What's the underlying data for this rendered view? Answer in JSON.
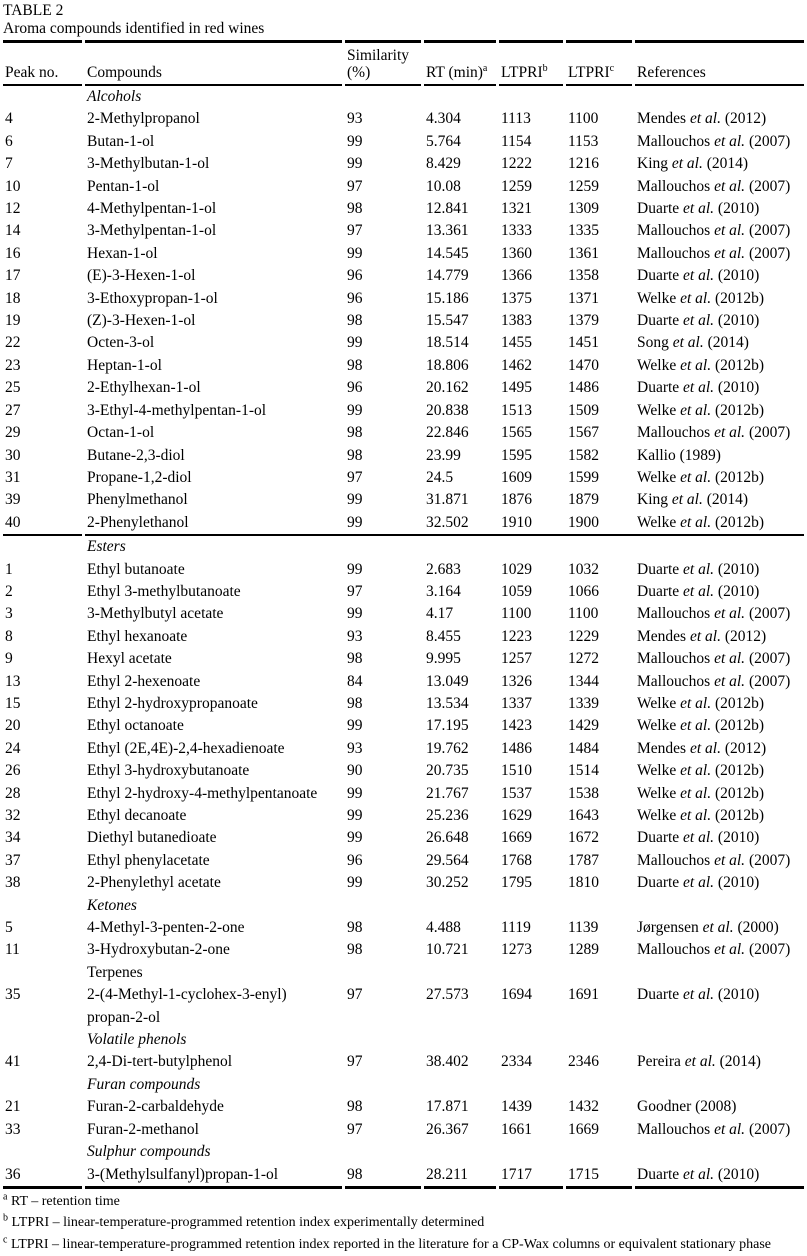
{
  "table": {
    "label": "TABLE 2",
    "caption": "Aroma compounds identified in red wines"
  },
  "columns": [
    {
      "line1": "",
      "line2": "Peak no.",
      "sup": ""
    },
    {
      "line1": "",
      "line2": "Compounds",
      "sup": ""
    },
    {
      "line1": "Similarity",
      "line2": "(%)",
      "sup": ""
    },
    {
      "line1": "",
      "line2": "RT (min)",
      "sup": "a"
    },
    {
      "line1": "",
      "line2": "LTPRI",
      "sup": "b"
    },
    {
      "line1": "",
      "line2": "LTPRI",
      "sup": "c"
    },
    {
      "line1": "",
      "line2": "References",
      "sup": ""
    }
  ],
  "sections": [
    {
      "name": "Alcohols",
      "italic": true,
      "rule_above": false,
      "rows": [
        {
          "peak": "4",
          "compound": "2-Methylpropanol",
          "similarity": "93",
          "rt": "4.304",
          "ltpri_exp": "1113",
          "ltpri_lit": "1100",
          "ref": {
            "pre": "Mendes",
            "etal": true,
            "post": "(2012)"
          }
        },
        {
          "peak": "6",
          "compound": "Butan-1-ol",
          "similarity": "99",
          "rt": "5.764",
          "ltpri_exp": "1154",
          "ltpri_lit": "1153",
          "ref": {
            "pre": "Mallouchos",
            "etal": true,
            "post": "(2007)"
          }
        },
        {
          "peak": "7",
          "compound": "3-Methylbutan-1-ol",
          "similarity": "99",
          "rt": "8.429",
          "ltpri_exp": "1222",
          "ltpri_lit": "1216",
          "ref": {
            "pre": "King",
            "etal": true,
            "post": "(2014)"
          }
        },
        {
          "peak": "10",
          "compound": "Pentan-1-ol",
          "similarity": "97",
          "rt": "10.08",
          "ltpri_exp": "1259",
          "ltpri_lit": "1259",
          "ref": {
            "pre": "Mallouchos",
            "etal": true,
            "post": "(2007)"
          }
        },
        {
          "peak": "12",
          "compound": "4-Methylpentan-1-ol",
          "similarity": "98",
          "rt": "12.841",
          "ltpri_exp": "1321",
          "ltpri_lit": "1309",
          "ref": {
            "pre": "Duarte",
            "etal": true,
            "post": "(2010)"
          }
        },
        {
          "peak": "14",
          "compound": "3-Methylpentan-1-ol",
          "similarity": "97",
          "rt": "13.361",
          "ltpri_exp": "1333",
          "ltpri_lit": "1335",
          "ref": {
            "pre": "Mallouchos",
            "etal": true,
            "post": "(2007)"
          }
        },
        {
          "peak": "16",
          "compound": "Hexan-1-ol",
          "similarity": "99",
          "rt": "14.545",
          "ltpri_exp": "1360",
          "ltpri_lit": "1361",
          "ref": {
            "pre": "Mallouchos",
            "etal": true,
            "post": "(2007)"
          }
        },
        {
          "peak": "17",
          "compound": "(E)-3-Hexen-1-ol",
          "similarity": "96",
          "rt": "14.779",
          "ltpri_exp": "1366",
          "ltpri_lit": "1358",
          "ref": {
            "pre": "Duarte",
            "etal": true,
            "post": "(2010)"
          }
        },
        {
          "peak": "18",
          "compound": "3-Ethoxypropan-1-ol",
          "similarity": "96",
          "rt": "15.186",
          "ltpri_exp": "1375",
          "ltpri_lit": "1371",
          "ref": {
            "pre": "Welke",
            "etal": true,
            "post": "(2012b)"
          }
        },
        {
          "peak": "19",
          "compound": "(Z)-3-Hexen-1-ol",
          "similarity": "98",
          "rt": "15.547",
          "ltpri_exp": "1383",
          "ltpri_lit": "1379",
          "ref": {
            "pre": "Duarte",
            "etal": true,
            "post": "(2010)"
          }
        },
        {
          "peak": "22",
          "compound": "Octen-3-ol",
          "similarity": "99",
          "rt": "18.514",
          "ltpri_exp": "1455",
          "ltpri_lit": "1451",
          "ref": {
            "pre": "Song",
            "etal": true,
            "post": "(2014)"
          }
        },
        {
          "peak": "23",
          "compound": "Heptan-1-ol",
          "similarity": "98",
          "rt": "18.806",
          "ltpri_exp": "1462",
          "ltpri_lit": "1470",
          "ref": {
            "pre": "Welke",
            "etal": true,
            "post": "(2012b)"
          }
        },
        {
          "peak": "25",
          "compound": "2-Ethylhexan-1-ol",
          "similarity": "96",
          "rt": "20.162",
          "ltpri_exp": "1495",
          "ltpri_lit": "1486",
          "ref": {
            "pre": "Duarte",
            "etal": true,
            "post": "(2010)"
          }
        },
        {
          "peak": "27",
          "compound": "3-Ethyl-4-methylpentan-1-ol",
          "similarity": "99",
          "rt": "20.838",
          "ltpri_exp": "1513",
          "ltpri_lit": "1509",
          "ref": {
            "pre": "Welke",
            "etal": true,
            "post": "(2012b)"
          }
        },
        {
          "peak": "29",
          "compound": "Octan-1-ol",
          "similarity": "98",
          "rt": "22.846",
          "ltpri_exp": "1565",
          "ltpri_lit": "1567",
          "ref": {
            "pre": "Mallouchos",
            "etal": true,
            "post": "(2007)"
          }
        },
        {
          "peak": "30",
          "compound": "Butane-2,3-diol",
          "similarity": "98",
          "rt": "23.99",
          "ltpri_exp": "1595",
          "ltpri_lit": "1582",
          "ref": {
            "pre": "Kallio",
            "etal": false,
            "post": "(1989)"
          }
        },
        {
          "peak": "31",
          "compound": "Propane-1,2-diol",
          "similarity": "97",
          "rt": "24.5",
          "ltpri_exp": "1609",
          "ltpri_lit": "1599",
          "ref": {
            "pre": "Welke",
            "etal": true,
            "post": "(2012b)"
          }
        },
        {
          "peak": "39",
          "compound": "Phenylmethanol",
          "similarity": "99",
          "rt": "31.871",
          "ltpri_exp": "1876",
          "ltpri_lit": "1879",
          "ref": {
            "pre": "King",
            "etal": true,
            "post": "(2014)"
          }
        },
        {
          "peak": "40",
          "compound": "2-Phenylethanol",
          "similarity": "99",
          "rt": "32.502",
          "ltpri_exp": "1910",
          "ltpri_lit": "1900",
          "ref": {
            "pre": "Welke",
            "etal": true,
            "post": "(2012b)"
          }
        }
      ]
    },
    {
      "name": "Esters",
      "italic": true,
      "rule_above": true,
      "rows": [
        {
          "peak": "1",
          "compound": "Ethyl butanoate",
          "similarity": "99",
          "rt": "2.683",
          "ltpri_exp": "1029",
          "ltpri_lit": "1032",
          "ref": {
            "pre": "Duarte",
            "etal": true,
            "post": "(2010)"
          }
        },
        {
          "peak": "2",
          "compound": "Ethyl 3-methylbutanoate",
          "similarity": "97",
          "rt": "3.164",
          "ltpri_exp": "1059",
          "ltpri_lit": "1066",
          "ref": {
            "pre": "Duarte",
            "etal": true,
            "post": "(2010)"
          }
        },
        {
          "peak": "3",
          "compound": "3-Methylbutyl acetate",
          "similarity": "99",
          "rt": "4.17",
          "ltpri_exp": "1100",
          "ltpri_lit": "1100",
          "ref": {
            "pre": "Mallouchos",
            "etal": true,
            "post": "(2007)"
          }
        },
        {
          "peak": "8",
          "compound": "Ethyl hexanoate",
          "similarity": "93",
          "rt": "8.455",
          "ltpri_exp": "1223",
          "ltpri_lit": "1229",
          "ref": {
            "pre": "Mendes",
            "etal": true,
            "post": "(2012)"
          }
        },
        {
          "peak": "9",
          "compound": "Hexyl acetate",
          "similarity": "98",
          "rt": "9.995",
          "ltpri_exp": "1257",
          "ltpri_lit": "1272",
          "ref": {
            "pre": "Mallouchos",
            "etal": true,
            "post": "(2007)"
          }
        },
        {
          "peak": "13",
          "compound": "Ethyl 2-hexenoate",
          "similarity": "84",
          "rt": "13.049",
          "ltpri_exp": "1326",
          "ltpri_lit": "1344",
          "ref": {
            "pre": "Mallouchos",
            "etal": true,
            "post": "(2007)"
          }
        },
        {
          "peak": "15",
          "compound": "Ethyl 2-hydroxypropanoate",
          "similarity": "98",
          "rt": "13.534",
          "ltpri_exp": "1337",
          "ltpri_lit": "1339",
          "ref": {
            "pre": "Welke",
            "etal": true,
            "post": "(2012b)"
          }
        },
        {
          "peak": "20",
          "compound": "Ethyl octanoate",
          "similarity": "99",
          "rt": "17.195",
          "ltpri_exp": "1423",
          "ltpri_lit": "1429",
          "ref": {
            "pre": "Welke",
            "etal": true,
            "post": "(2012b)"
          }
        },
        {
          "peak": "24",
          "compound": "Ethyl (2E,4E)-2,4-hexadienoate",
          "similarity": "93",
          "rt": "19.762",
          "ltpri_exp": "1486",
          "ltpri_lit": "1484",
          "ref": {
            "pre": "Mendes",
            "etal": true,
            "post": "(2012)"
          }
        },
        {
          "peak": "26",
          "compound": "Ethyl 3-hydroxybutanoate",
          "similarity": "90",
          "rt": "20.735",
          "ltpri_exp": "1510",
          "ltpri_lit": "1514",
          "ref": {
            "pre": "Welke",
            "etal": true,
            "post": "(2012b)"
          }
        },
        {
          "peak": "28",
          "compound": "Ethyl 2-hydroxy-4-methylpentanoate",
          "similarity": "99",
          "rt": "21.767",
          "ltpri_exp": "1537",
          "ltpri_lit": "1538",
          "ref": {
            "pre": "Welke",
            "etal": true,
            "post": "(2012b)"
          }
        },
        {
          "peak": "32",
          "compound": "Ethyl decanoate",
          "similarity": "99",
          "rt": "25.236",
          "ltpri_exp": "1629",
          "ltpri_lit": "1643",
          "ref": {
            "pre": "Welke",
            "etal": true,
            "post": "(2012b)"
          }
        },
        {
          "peak": "34",
          "compound": "Diethyl butanedioate",
          "similarity": "99",
          "rt": "26.648",
          "ltpri_exp": "1669",
          "ltpri_lit": "1672",
          "ref": {
            "pre": "Duarte",
            "etal": true,
            "post": "(2010)"
          }
        },
        {
          "peak": "37",
          "compound": "Ethyl phenylacetate",
          "similarity": "96",
          "rt": "29.564",
          "ltpri_exp": "1768",
          "ltpri_lit": "1787",
          "ref": {
            "pre": "Mallouchos",
            "etal": true,
            "post": "(2007)"
          }
        },
        {
          "peak": "38",
          "compound": "2-Phenylethyl acetate",
          "similarity": "99",
          "rt": "30.252",
          "ltpri_exp": "1795",
          "ltpri_lit": "1810",
          "ref": {
            "pre": "Duarte",
            "etal": true,
            "post": "(2010)"
          }
        }
      ]
    },
    {
      "name": "Ketones",
      "italic": true,
      "rule_above": false,
      "rows": [
        {
          "peak": "5",
          "compound": "4-Methyl-3-penten-2-one",
          "similarity": "98",
          "rt": "4.488",
          "ltpri_exp": "1119",
          "ltpri_lit": "1139",
          "ref": {
            "pre": "Jørgensen",
            "etal": true,
            "post": "(2000)"
          }
        },
        {
          "peak": "11",
          "compound": "3-Hydroxybutan-2-one",
          "similarity": "98",
          "rt": "10.721",
          "ltpri_exp": "1273",
          "ltpri_lit": "1289",
          "ref": {
            "pre": "Mallouchos",
            "etal": true,
            "post": "(2007)"
          }
        }
      ]
    },
    {
      "name": "Terpenes",
      "italic": false,
      "rule_above": false,
      "rows": [
        {
          "peak": "35",
          "compound": "2-(4-Methyl-1-cyclohex-3-enyl)\npropan-2-ol",
          "similarity": "97",
          "rt": "27.573",
          "ltpri_exp": "1694",
          "ltpri_lit": "1691",
          "ref": {
            "pre": "Duarte",
            "etal": true,
            "post": "(2010)"
          }
        }
      ]
    },
    {
      "name": "Volatile phenols",
      "italic": true,
      "rule_above": false,
      "rows": [
        {
          "peak": "41",
          "compound": "2,4-Di-tert-butylphenol",
          "similarity": "97",
          "rt": "38.402",
          "ltpri_exp": "2334",
          "ltpri_lit": "2346",
          "ref": {
            "pre": "Pereira",
            "etal": true,
            "post": "(2014)"
          }
        }
      ]
    },
    {
      "name": "Furan compounds",
      "italic": true,
      "rule_above": false,
      "rows": [
        {
          "peak": "21",
          "compound": "Furan-2-carbaldehyde",
          "similarity": "98",
          "rt": "17.871",
          "ltpri_exp": "1439",
          "ltpri_lit": "1432",
          "ref": {
            "pre": "Goodner",
            "etal": false,
            "post": "(2008)"
          }
        },
        {
          "peak": "33",
          "compound": "Furan-2-methanol",
          "similarity": "97",
          "rt": "26.367",
          "ltpri_exp": "1661",
          "ltpri_lit": "1669",
          "ref": {
            "pre": "Mallouchos",
            "etal": true,
            "post": "(2007)"
          }
        }
      ]
    },
    {
      "name": "Sulphur compounds",
      "italic": true,
      "rule_above": false,
      "rows": [
        {
          "peak": "36",
          "compound": "3-(Methylsulfanyl)propan-1-ol",
          "similarity": "98",
          "rt": "28.211",
          "ltpri_exp": "1717",
          "ltpri_lit": "1715",
          "ref": {
            "pre": "Duarte",
            "etal": true,
            "post": "(2010)"
          }
        }
      ]
    }
  ],
  "footnotes": [
    {
      "sup": "a",
      "text": "RT – retention time"
    },
    {
      "sup": "b",
      "text": "LTPRI – linear-temperature-programmed retention index experimentally determined"
    },
    {
      "sup": "c",
      "text": "LTPRI – linear-temperature-programmed retention index reported in the literature for a CP-Wax columns or equivalent stationary phase"
    }
  ]
}
